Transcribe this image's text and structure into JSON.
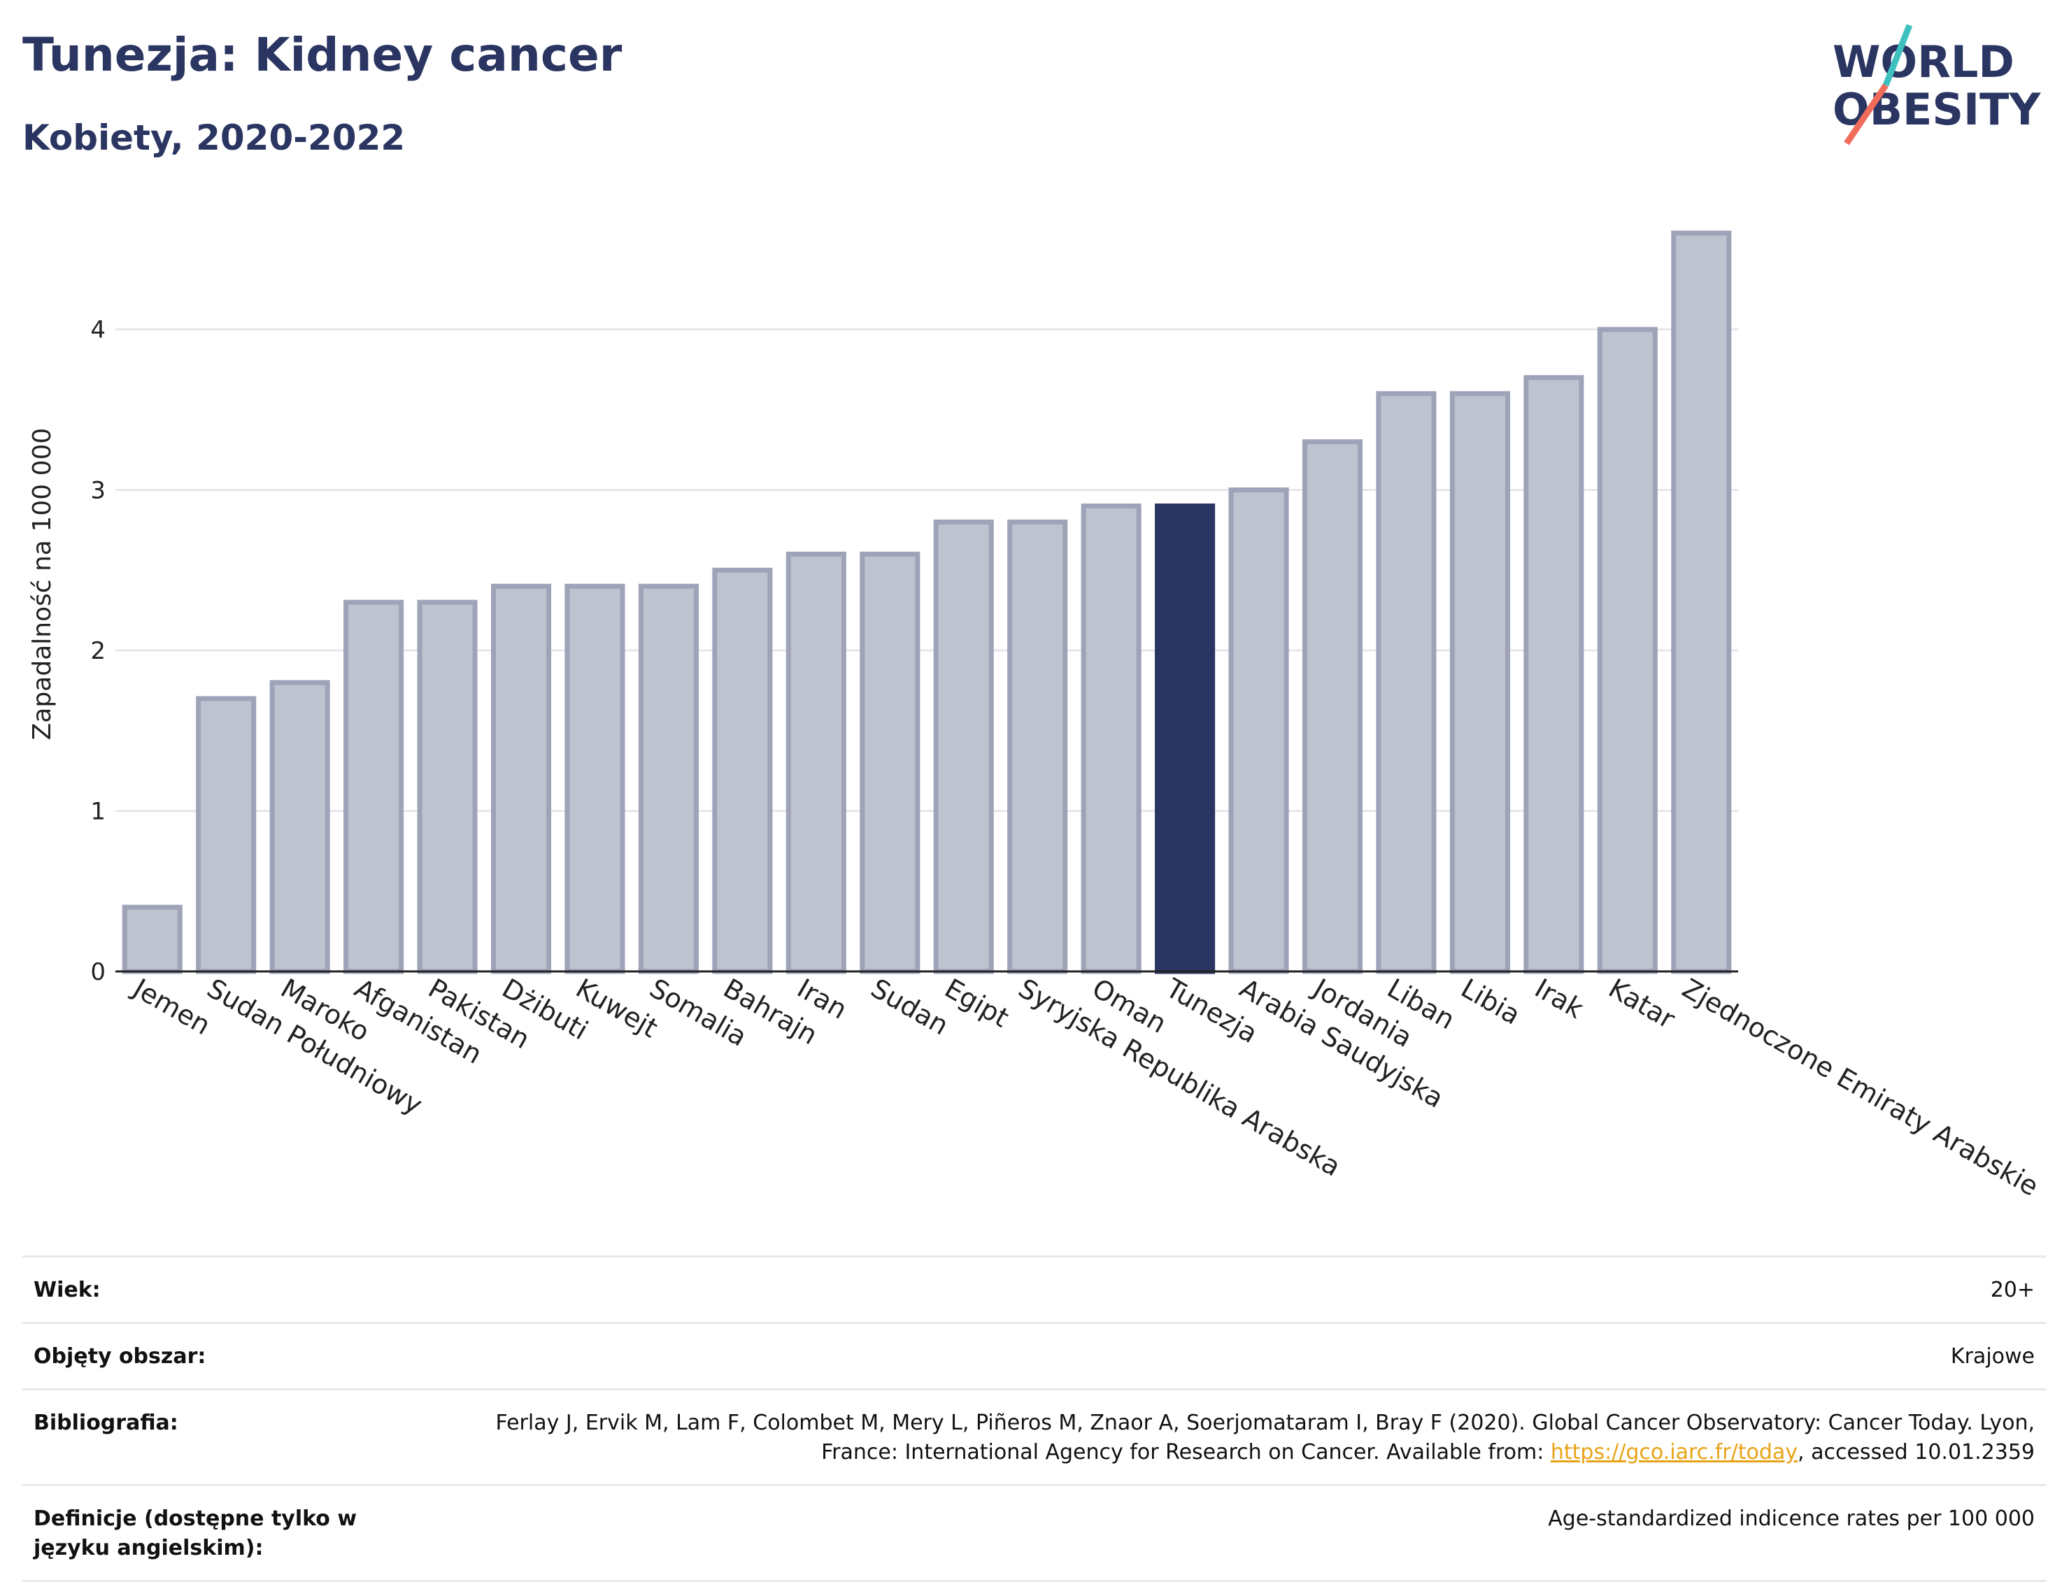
{
  "header": {
    "title": "Tunezja: Kidney cancer",
    "subtitle": "Kobiety, 2020-2022"
  },
  "logo": {
    "line1": "WORLD",
    "line2": "OBESITY",
    "slash_colors": [
      "#3fc1c0",
      "#f06b5a"
    ],
    "text_color": "#2a3561"
  },
  "colors": {
    "bar": "#bfc2cf",
    "bar_stroke": "#9ea3b8",
    "highlight": "#2a3561",
    "grid": "#e6e6ec",
    "axis": "#222222"
  },
  "chart_data": {
    "type": "bar",
    "title": "Tunezja: Kidney cancer",
    "subtitle": "Kobiety, 2020-2022",
    "ylabel": "Zapadalność na 100 000",
    "xlabel": "",
    "ylim": [
      0,
      4.75
    ],
    "yticks": [
      0,
      1,
      2,
      3,
      4
    ],
    "grid": true,
    "highlight": "Tunezja",
    "categories": [
      "Jemen",
      "Sudan Południowy",
      "Maroko",
      "Afganistan",
      "Pakistan",
      "Dżibuti",
      "Kuwejt",
      "Somalia",
      "Bahrajn",
      "Iran",
      "Sudan",
      "Egipt",
      "Syryjska Republika Arabska",
      "Oman",
      "Tunezja",
      "Arabia Saudyjska",
      "Jordania",
      "Liban",
      "Libia",
      "Irak",
      "Katar",
      "Zjednoczone Emiraty Arabskie"
    ],
    "values": [
      0.4,
      1.7,
      1.8,
      2.3,
      2.3,
      2.4,
      2.4,
      2.4,
      2.5,
      2.6,
      2.6,
      2.8,
      2.8,
      2.9,
      2.9,
      3.0,
      3.3,
      3.6,
      3.6,
      3.7,
      4.0,
      4.6
    ]
  },
  "info": {
    "rows": [
      {
        "key": "Wiek:",
        "value": "20+"
      },
      {
        "key": "Objęty obszar:",
        "value": "Krajowe"
      },
      {
        "key": "Bibliografia:",
        "value_parts": [
          "Ferlay J, Ervik M, Lam F, Colombet M, Mery L, Piñeros M, Znaor A, Soerjomataram I, Bray F (2020). Global Cancer Observatory: Cancer Today. Lyon, France: International Agency for Research on Cancer. Available from: ",
          "https://gco.iarc.fr/today",
          ", accessed 10.01.2359"
        ]
      },
      {
        "key": "Definicje (dostępne tylko w języku angielskim):",
        "value": "Age-standardized indicence rates per 100 000"
      }
    ]
  }
}
